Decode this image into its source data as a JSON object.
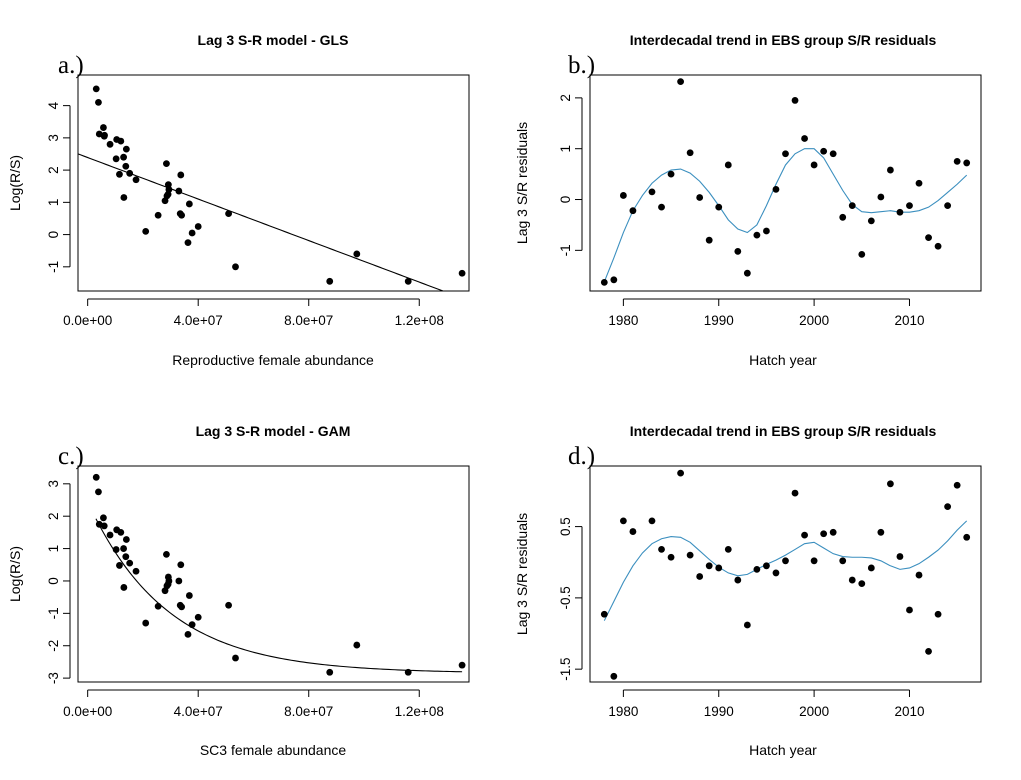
{
  "chart_data": [
    {
      "type": "scatter",
      "panel": "a.)",
      "title": "Lag 3 S-R model - GLS",
      "xlabel": "Reproductive female abundance",
      "ylabel": "Log(R/S)",
      "xlim": [
        -3500000,
        138000000
      ],
      "ylim": [
        -1.75,
        4.95
      ],
      "xticks": [
        0,
        40000000,
        80000000,
        120000000
      ],
      "xtick_labels": [
        "0.0e+00",
        "4.0e+07",
        "8.0e+07",
        "1.2e+08"
      ],
      "yticks": [
        -1,
        0,
        1,
        2,
        3,
        4
      ],
      "ytick_labels": [
        "-1",
        "0",
        "1",
        "2",
        "3",
        "4"
      ],
      "grid": false,
      "points": [
        [
          3100000,
          4.52
        ],
        [
          3900000,
          4.1
        ],
        [
          4200000,
          3.12
        ],
        [
          5700000,
          3.32
        ],
        [
          6000000,
          3.05
        ],
        [
          6100000,
          3.08
        ],
        [
          8100000,
          2.8
        ],
        [
          10300000,
          2.35
        ],
        [
          10500000,
          2.95
        ],
        [
          11500000,
          1.87
        ],
        [
          12000000,
          2.9
        ],
        [
          13000000,
          2.4
        ],
        [
          13100000,
          1.15
        ],
        [
          13800000,
          2.12
        ],
        [
          14000000,
          2.65
        ],
        [
          15200000,
          1.9
        ],
        [
          17500000,
          1.7
        ],
        [
          21000000,
          0.1
        ],
        [
          25500000,
          0.6
        ],
        [
          28000000,
          1.05
        ],
        [
          28500000,
          2.2
        ],
        [
          28700000,
          1.2
        ],
        [
          29100000,
          1.25
        ],
        [
          29200000,
          1.55
        ],
        [
          29400000,
          1.4
        ],
        [
          33000000,
          1.35
        ],
        [
          33500000,
          0.65
        ],
        [
          33700000,
          1.85
        ],
        [
          34000000,
          0.6
        ],
        [
          36300000,
          -0.25
        ],
        [
          36800000,
          0.95
        ],
        [
          37800000,
          0.05
        ],
        [
          40000000,
          0.25
        ],
        [
          51000000,
          0.65
        ],
        [
          53500000,
          -1.0
        ],
        [
          87600000,
          -1.45
        ],
        [
          97400000,
          -0.6
        ],
        [
          116000000,
          -1.45
        ],
        [
          135500000,
          -1.2
        ]
      ],
      "fit": {
        "kind": "linear",
        "intercept": 2.39,
        "slope": -3.22e-08,
        "x_range": [
          -3500000,
          128500000
        ]
      }
    },
    {
      "type": "line",
      "panel": "b.)",
      "title": "Interdecadal trend in EBS group S/R residuals",
      "xlabel": "Hatch year",
      "ylabel": "Lag 3 S/R residuals",
      "xlim": [
        1976.5,
        2017.5
      ],
      "ylim": [
        -1.8,
        2.45
      ],
      "xticks": [
        1980,
        1990,
        2000,
        2010
      ],
      "xtick_labels": [
        "1980",
        "1990",
        "2000",
        "2010"
      ],
      "yticks": [
        -1,
        0,
        1,
        2
      ],
      "ytick_labels": [
        "-1",
        "0",
        "1",
        "2"
      ],
      "grid": false,
      "points": [
        [
          1978,
          -1.63
        ],
        [
          1979,
          -1.58
        ],
        [
          1980,
          0.08
        ],
        [
          1981,
          -0.22
        ],
        [
          1983,
          0.15
        ],
        [
          1984,
          -0.15
        ],
        [
          1985,
          0.5
        ],
        [
          1986,
          2.32
        ],
        [
          1987,
          0.92
        ],
        [
          1988,
          0.04
        ],
        [
          1989,
          -0.8
        ],
        [
          1990,
          -0.15
        ],
        [
          1991,
          0.68
        ],
        [
          1992,
          -1.02
        ],
        [
          1993,
          -1.45
        ],
        [
          1994,
          -0.7
        ],
        [
          1995,
          -0.62
        ],
        [
          1996,
          0.2
        ],
        [
          1997,
          0.9
        ],
        [
          1998,
          1.95
        ],
        [
          1999,
          1.2
        ],
        [
          2000,
          0.68
        ],
        [
          2001,
          0.95
        ],
        [
          2002,
          0.9
        ],
        [
          2003,
          -0.35
        ],
        [
          2004,
          -0.12
        ],
        [
          2005,
          -1.08
        ],
        [
          2006,
          -0.42
        ],
        [
          2007,
          0.05
        ],
        [
          2008,
          0.58
        ],
        [
          2009,
          -0.25
        ],
        [
          2010,
          -0.12
        ],
        [
          2011,
          0.32
        ],
        [
          2012,
          -0.75
        ],
        [
          2013,
          -0.92
        ],
        [
          2014,
          -0.12
        ],
        [
          2015,
          0.75
        ],
        [
          2016,
          0.72
        ]
      ],
      "trend_color": "#3b8fbf",
      "trend": [
        [
          1978,
          -1.62
        ],
        [
          1979,
          -1.15
        ],
        [
          1980,
          -0.65
        ],
        [
          1981,
          -0.22
        ],
        [
          1982,
          0.08
        ],
        [
          1983,
          0.32
        ],
        [
          1984,
          0.48
        ],
        [
          1985,
          0.58
        ],
        [
          1986,
          0.6
        ],
        [
          1987,
          0.52
        ],
        [
          1988,
          0.36
        ],
        [
          1989,
          0.14
        ],
        [
          1990,
          -0.12
        ],
        [
          1991,
          -0.4
        ],
        [
          1992,
          -0.58
        ],
        [
          1993,
          -0.65
        ],
        [
          1994,
          -0.5
        ],
        [
          1995,
          -0.12
        ],
        [
          1996,
          0.3
        ],
        [
          1997,
          0.68
        ],
        [
          1998,
          0.9
        ],
        [
          1999,
          1.0
        ],
        [
          2000,
          1.0
        ],
        [
          2001,
          0.82
        ],
        [
          2002,
          0.5
        ],
        [
          2003,
          0.18
        ],
        [
          2004,
          -0.1
        ],
        [
          2005,
          -0.24
        ],
        [
          2006,
          -0.26
        ],
        [
          2007,
          -0.24
        ],
        [
          2008,
          -0.22
        ],
        [
          2009,
          -0.25
        ],
        [
          2010,
          -0.25
        ],
        [
          2011,
          -0.22
        ],
        [
          2012,
          -0.15
        ],
        [
          2013,
          -0.02
        ],
        [
          2014,
          0.14
        ],
        [
          2015,
          0.3
        ],
        [
          2016,
          0.48
        ]
      ]
    },
    {
      "type": "scatter",
      "panel": "c.)",
      "title": "Lag 3 S-R model - GAM",
      "xlabel": "SC3 female abundance",
      "ylabel": "Log(R/S)",
      "xlim": [
        -3500000,
        138000000
      ],
      "ylim": [
        -3.12,
        3.55
      ],
      "xticks": [
        0,
        40000000,
        80000000,
        120000000
      ],
      "xtick_labels": [
        "0.0e+00",
        "4.0e+07",
        "8.0e+07",
        "1.2e+08"
      ],
      "yticks": [
        -3,
        -2,
        -1,
        0,
        1,
        2,
        3
      ],
      "ytick_labels": [
        "-3",
        "-2",
        "-1",
        "0",
        "1",
        "2",
        "3"
      ],
      "grid": false,
      "points": [
        [
          3100000,
          3.2
        ],
        [
          3900000,
          2.75
        ],
        [
          4200000,
          1.75
        ],
        [
          5700000,
          1.95
        ],
        [
          6000000,
          1.7
        ],
        [
          8100000,
          1.42
        ],
        [
          10300000,
          0.97
        ],
        [
          10500000,
          1.58
        ],
        [
          11500000,
          0.48
        ],
        [
          12000000,
          1.5
        ],
        [
          13000000,
          1.0
        ],
        [
          13100000,
          -0.2
        ],
        [
          13800000,
          0.75
        ],
        [
          14000000,
          1.28
        ],
        [
          15200000,
          0.55
        ],
        [
          17500000,
          0.3
        ],
        [
          21000000,
          -1.3
        ],
        [
          25500000,
          -0.78
        ],
        [
          28000000,
          -0.3
        ],
        [
          28500000,
          0.82
        ],
        [
          28700000,
          -0.15
        ],
        [
          29100000,
          -0.1
        ],
        [
          29200000,
          0.12
        ],
        [
          29400000,
          0.0
        ],
        [
          33000000,
          0.0
        ],
        [
          33500000,
          -0.75
        ],
        [
          33700000,
          0.5
        ],
        [
          34000000,
          -0.8
        ],
        [
          36300000,
          -1.65
        ],
        [
          36800000,
          -0.45
        ],
        [
          37800000,
          -1.35
        ],
        [
          40000000,
          -1.12
        ],
        [
          51000000,
          -0.75
        ],
        [
          53500000,
          -2.38
        ],
        [
          87600000,
          -2.82
        ],
        [
          97400000,
          -1.98
        ],
        [
          116000000,
          -2.82
        ],
        [
          135500000,
          -2.6
        ]
      ],
      "fit": {
        "kind": "exponential",
        "asymptote": -2.85,
        "amplitude": 5.3,
        "rate": 3.5e-08,
        "x_range": [
          3000000,
          135500000
        ]
      }
    },
    {
      "type": "line",
      "panel": "d.)",
      "title": "Interdecadal trend in EBS group S/R residuals",
      "xlabel": "Hatch year",
      "ylabel": "Lag 3 S/R residuals",
      "xlim": [
        1976.5,
        2017.5
      ],
      "ylim": [
        -1.68,
        1.35
      ],
      "xticks": [
        1980,
        1990,
        2000,
        2010
      ],
      "xtick_labels": [
        "1980",
        "1990",
        "2000",
        "2010"
      ],
      "yticks": [
        -1.5,
        -0.5,
        0.5
      ],
      "ytick_labels": [
        "-1.5",
        "-0.5",
        "0.5"
      ],
      "grid": false,
      "points": [
        [
          1978,
          -0.73
        ],
        [
          1979,
          -1.6
        ],
        [
          1980,
          0.58
        ],
        [
          1981,
          0.43
        ],
        [
          1983,
          0.58
        ],
        [
          1984,
          0.18
        ],
        [
          1985,
          0.07
        ],
        [
          1986,
          1.25
        ],
        [
          1987,
          0.1
        ],
        [
          1988,
          -0.2
        ],
        [
          1989,
          -0.05
        ],
        [
          1990,
          -0.08
        ],
        [
          1991,
          0.18
        ],
        [
          1992,
          -0.25
        ],
        [
          1993,
          -0.88
        ],
        [
          1994,
          -0.1
        ],
        [
          1995,
          -0.05
        ],
        [
          1996,
          -0.15
        ],
        [
          1997,
          0.02
        ],
        [
          1998,
          0.97
        ],
        [
          1999,
          0.38
        ],
        [
          2000,
          0.02
        ],
        [
          2001,
          0.4
        ],
        [
          2002,
          0.42
        ],
        [
          2003,
          0.02
        ],
        [
          2004,
          -0.25
        ],
        [
          2005,
          -0.3
        ],
        [
          2006,
          -0.08
        ],
        [
          2007,
          0.42
        ],
        [
          2008,
          1.1
        ],
        [
          2009,
          0.08
        ],
        [
          2010,
          -0.67
        ],
        [
          2011,
          -0.18
        ],
        [
          2012,
          -1.25
        ],
        [
          2013,
          -0.73
        ],
        [
          2014,
          0.78
        ],
        [
          2015,
          1.08
        ],
        [
          2016,
          0.35
        ]
      ],
      "trend_color": "#3b8fbf",
      "trend": [
        [
          1978,
          -0.82
        ],
        [
          1979,
          -0.55
        ],
        [
          1980,
          -0.28
        ],
        [
          1981,
          -0.05
        ],
        [
          1982,
          0.13
        ],
        [
          1983,
          0.26
        ],
        [
          1984,
          0.33
        ],
        [
          1985,
          0.36
        ],
        [
          1986,
          0.35
        ],
        [
          1987,
          0.28
        ],
        [
          1988,
          0.16
        ],
        [
          1989,
          0.04
        ],
        [
          1990,
          -0.07
        ],
        [
          1991,
          -0.15
        ],
        [
          1992,
          -0.19
        ],
        [
          1993,
          -0.17
        ],
        [
          1994,
          -0.1
        ],
        [
          1995,
          -0.03
        ],
        [
          1996,
          0.03
        ],
        [
          1997,
          0.1
        ],
        [
          1998,
          0.18
        ],
        [
          1999,
          0.26
        ],
        [
          2000,
          0.28
        ],
        [
          2001,
          0.2
        ],
        [
          2002,
          0.12
        ],
        [
          2003,
          0.08
        ],
        [
          2004,
          0.07
        ],
        [
          2005,
          0.07
        ],
        [
          2006,
          0.06
        ],
        [
          2007,
          0.02
        ],
        [
          2008,
          -0.05
        ],
        [
          2009,
          -0.1
        ],
        [
          2010,
          -0.08
        ],
        [
          2011,
          -0.02
        ],
        [
          2012,
          0.07
        ],
        [
          2013,
          0.17
        ],
        [
          2014,
          0.3
        ],
        [
          2015,
          0.45
        ],
        [
          2016,
          0.58
        ]
      ]
    }
  ]
}
